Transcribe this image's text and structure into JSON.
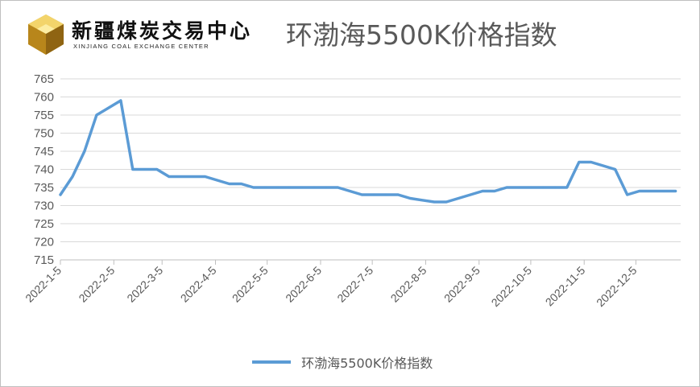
{
  "logo": {
    "cn_name": "新疆煤炭交易中心",
    "en_name": "XINJIANG COAL EXCHANGE CENTER"
  },
  "colors": {
    "series": "#5b9bd5",
    "grid": "#d9d9d9",
    "text": "#595959"
  },
  "chart_data": {
    "type": "line",
    "title": "环渤海5500K价格指数",
    "xlabel": "",
    "ylabel": "",
    "ylim": [
      715,
      765
    ],
    "ytick_step": 5,
    "grid": "horizontal",
    "legend_position": "bottom",
    "x_tick_labels": [
      "2022-1-5",
      "2022-2-5",
      "2022-3-5",
      "2022-4-5",
      "2022-5-5",
      "2022-6-5",
      "2022-7-5",
      "2022-8-5",
      "2022-9-5",
      "2022-10-5",
      "2022-11-5",
      "2022-12-5"
    ],
    "series": [
      {
        "name": "环渤海5500K价格指数",
        "x": [
          "2022-1-5",
          "2022-1-12",
          "2022-1-19",
          "2022-1-26",
          "2022-2-9",
          "2022-2-16",
          "2022-2-23",
          "2022-3-2",
          "2022-3-9",
          "2022-3-16",
          "2022-3-23",
          "2022-3-30",
          "2022-4-6",
          "2022-4-13",
          "2022-4-20",
          "2022-4-27",
          "2022-5-4",
          "2022-5-11",
          "2022-5-18",
          "2022-5-25",
          "2022-6-1",
          "2022-6-8",
          "2022-6-15",
          "2022-6-22",
          "2022-6-29",
          "2022-7-6",
          "2022-7-13",
          "2022-7-20",
          "2022-7-27",
          "2022-8-3",
          "2022-8-10",
          "2022-8-17",
          "2022-8-24",
          "2022-8-31",
          "2022-9-7",
          "2022-9-14",
          "2022-9-21",
          "2022-9-28",
          "2022-10-5",
          "2022-10-12",
          "2022-10-19",
          "2022-10-26",
          "2022-11-2",
          "2022-11-9",
          "2022-11-16",
          "2022-11-23",
          "2022-11-30",
          "2022-12-7",
          "2022-12-14",
          "2022-12-21",
          "2022-12-28"
        ],
        "values": [
          733,
          738,
          745,
          755,
          759,
          740,
          740,
          740,
          738,
          738,
          738,
          738,
          737,
          736,
          736,
          735,
          735,
          735,
          735,
          735,
          735,
          735,
          735,
          734,
          733,
          733,
          733,
          733,
          732,
          731.5,
          731,
          731,
          732,
          733,
          734,
          734,
          735,
          735,
          735,
          735,
          735,
          735,
          742,
          742,
          741,
          740,
          733,
          734,
          734,
          734,
          734
        ]
      }
    ]
  }
}
